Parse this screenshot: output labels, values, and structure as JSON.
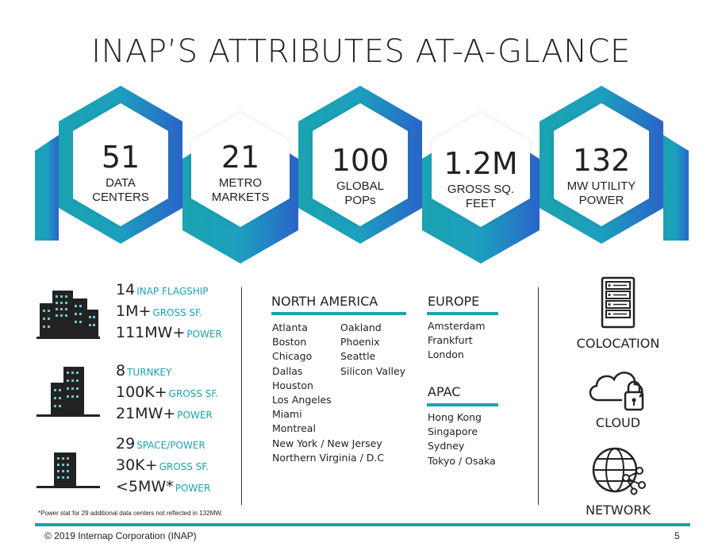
{
  "title": "INAP’S ATTRIBUTES AT-A-GLANCE",
  "colors": {
    "teal": "#1aa3b0",
    "blue": "#2a6fc9",
    "text": "#222222"
  },
  "stats": [
    {
      "value": "51",
      "label_line1": "DATA",
      "label_line2": "CENTERS"
    },
    {
      "value": "21",
      "label_line1": "METRO",
      "label_line2": "MARKETS"
    },
    {
      "value": "100",
      "label_line1": "GLOBAL",
      "label_line2": "POPs"
    },
    {
      "value": "1.2M",
      "label_line1": "GROSS SQ.",
      "label_line2": "FEET"
    },
    {
      "value": "132",
      "label_line1": "MW UTILITY",
      "label_line2": "POWER"
    }
  ],
  "facilities": [
    {
      "icon": "large-buildings-icon",
      "line1_num": "14",
      "line1_label": "INAP FLAGSHIP",
      "line2_num": "1M+",
      "line2_label": "GROSS SF.",
      "line3_num": "111MW+",
      "line3_label": "POWER"
    },
    {
      "icon": "medium-buildings-icon",
      "line1_num": "8",
      "line1_label": "TURNKEY",
      "line2_num": "100K+",
      "line2_label": "GROSS SF.",
      "line3_num": "21MW+",
      "line3_label": "POWER"
    },
    {
      "icon": "small-building-icon",
      "line1_num": "29",
      "line1_label": "SPACE/POWER",
      "line2_num": "30K+",
      "line2_label": "GROSS SF.",
      "line3_num": "<5MW*",
      "line3_label": "POWER"
    }
  ],
  "regions": {
    "north_america": {
      "title": "NORTH AMERICA",
      "col1": [
        "Atlanta",
        "Boston",
        "Chicago",
        "Dallas",
        "Houston",
        "Los Angeles",
        "Miami",
        "Montreal",
        "New York / New Jersey",
        "Northern Virginia / D.C"
      ],
      "col2": [
        "Oakland",
        "Phoenix",
        "Seattle",
        "Silicon Valley"
      ]
    },
    "europe": {
      "title": "EUROPE",
      "cities": [
        "Amsterdam",
        "Frankfurt",
        "London"
      ]
    },
    "apac": {
      "title": "APAC",
      "cities": [
        "Hong Kong",
        "Singapore",
        "Sydney",
        "Tokyo / Osaka"
      ]
    }
  },
  "services": [
    {
      "icon": "server-rack-icon",
      "label": "COLOCATION"
    },
    {
      "icon": "cloud-lock-icon",
      "label": "CLOUD"
    },
    {
      "icon": "globe-network-icon",
      "label": "NETWORK"
    }
  ],
  "footnote": "*Power stat for 29 additional data centers not reflected in 132MW.",
  "footer": {
    "copyright": "© 2019 Internap Corporation (INAP)",
    "page": "5"
  }
}
